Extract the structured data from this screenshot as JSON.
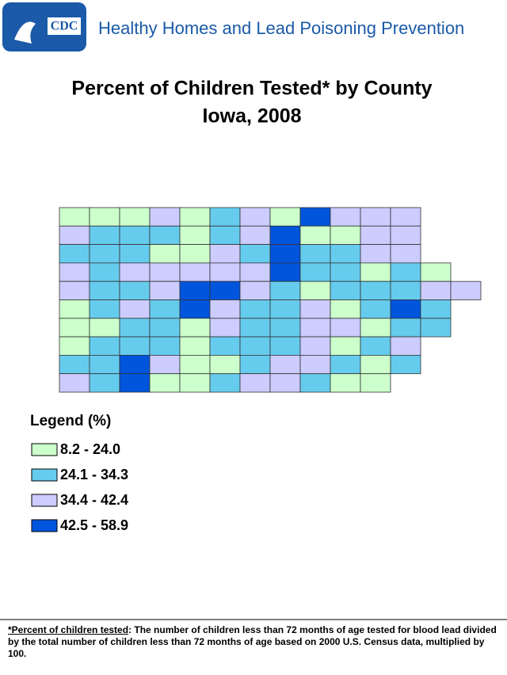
{
  "header": {
    "logo": "CDC",
    "title": "Healthy Homes and Lead Poisoning Prevention"
  },
  "map": {
    "title": "Percent of Children Tested* by County",
    "subtitle": "Iowa, 2008",
    "legend": {
      "title": "Legend (%)",
      "items": [
        {
          "label": "8.2 - 24.0",
          "color": "#ccffcc"
        },
        {
          "label": "24.1 - 34.3",
          "color": "#66ccee"
        },
        {
          "label": "34.4 - 42.4",
          "color": "#ccccff"
        },
        {
          "label": "42.5 - 58.9",
          "color": "#0055dd"
        }
      ]
    }
  },
  "footnote": {
    "term": "*Percent of children tested",
    "text": ": The number of children less than 72 months of age tested for blood lead divided by the total number of children less than 72 months of age based on 2000 U.S. Census data, multiplied by 100."
  }
}
